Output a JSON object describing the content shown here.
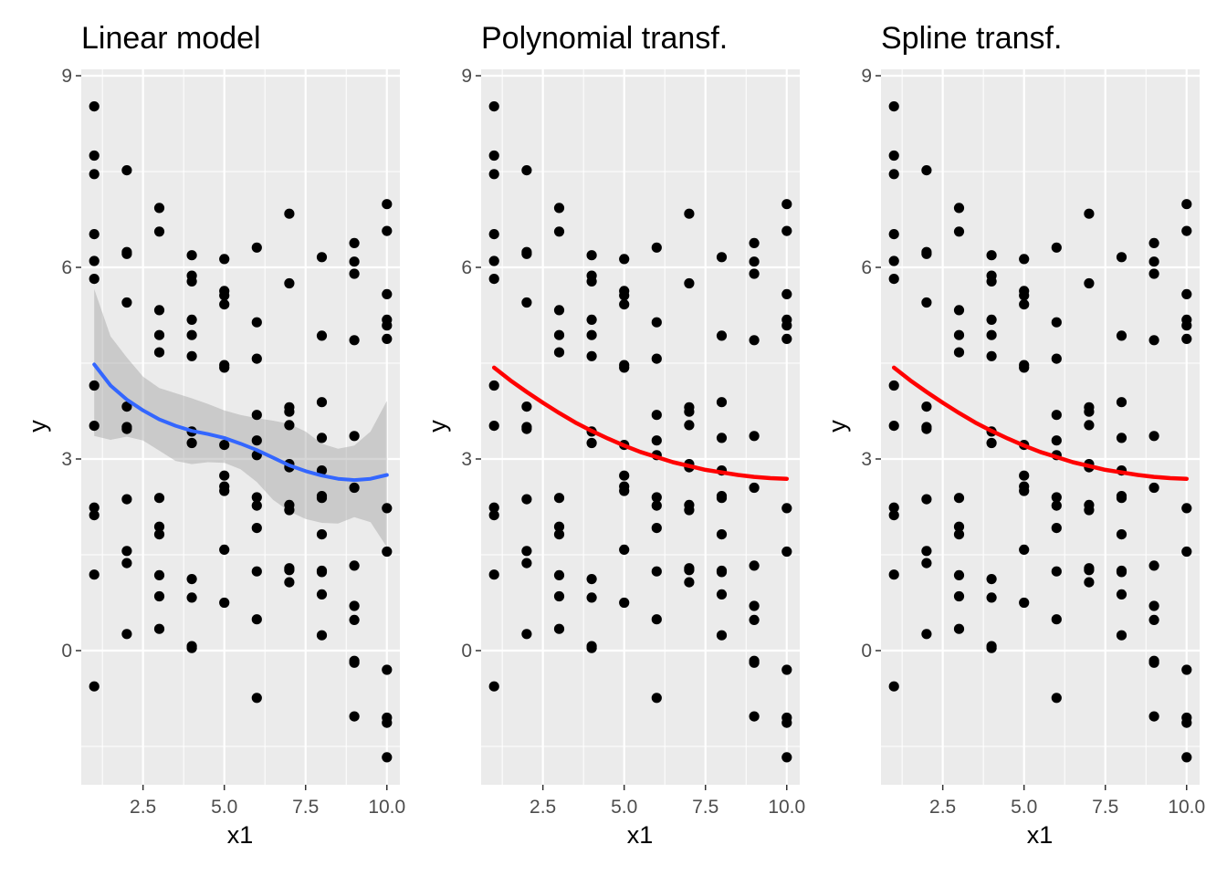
{
  "colors": {
    "panel_bg": "#ebebeb",
    "grid": "#ffffff",
    "points": "#000000",
    "smooth_line": "#3366ff",
    "ribbon": "#999999",
    "fit_line": "#ff0000",
    "tick_text": "#4d4d4d"
  },
  "chart_data": [
    {
      "type": "scatter",
      "title": "Linear model",
      "xlabel": "x1",
      "ylabel": "y",
      "xlim": [
        0.6,
        10.4
      ],
      "ylim": [
        -2.1,
        9.1
      ],
      "x_ticks": [
        2.5,
        5.0,
        7.5,
        10.0
      ],
      "x_tick_labels": [
        "2.5",
        "5.0",
        "7.5",
        "10.0"
      ],
      "y_ticks": [
        0,
        3,
        6,
        9
      ],
      "y_tick_labels": [
        "0",
        "3",
        "6",
        "9"
      ],
      "grid": true,
      "points": [
        [
          1,
          8.52
        ],
        [
          1,
          7.75
        ],
        [
          1,
          7.46
        ],
        [
          1,
          6.52
        ],
        [
          1,
          6.1
        ],
        [
          1,
          5.82
        ],
        [
          1,
          4.15
        ],
        [
          1,
          3.52
        ],
        [
          1,
          2.24
        ],
        [
          1,
          2.12
        ],
        [
          1,
          1.19
        ],
        [
          1,
          -0.56
        ],
        [
          2,
          7.52
        ],
        [
          2,
          6.24
        ],
        [
          2,
          6.21
        ],
        [
          2,
          5.45
        ],
        [
          2,
          3.82
        ],
        [
          2,
          3.5
        ],
        [
          2,
          3.47
        ],
        [
          2,
          2.37
        ],
        [
          2,
          1.56
        ],
        [
          2,
          1.37
        ],
        [
          2,
          0.26
        ],
        [
          3,
          6.93
        ],
        [
          3,
          6.56
        ],
        [
          3,
          5.33
        ],
        [
          3,
          4.94
        ],
        [
          3,
          4.67
        ],
        [
          3,
          2.39
        ],
        [
          3,
          1.94
        ],
        [
          3,
          1.82
        ],
        [
          3,
          1.18
        ],
        [
          3,
          0.85
        ],
        [
          3,
          0.34
        ],
        [
          4,
          6.19
        ],
        [
          4,
          5.87
        ],
        [
          4,
          5.78
        ],
        [
          4,
          5.18
        ],
        [
          4,
          4.94
        ],
        [
          4,
          4.61
        ],
        [
          4,
          3.43
        ],
        [
          4,
          3.25
        ],
        [
          4,
          1.12
        ],
        [
          4,
          0.83
        ],
        [
          4,
          0.07
        ],
        [
          4,
          0.04
        ],
        [
          5,
          6.13
        ],
        [
          5,
          5.63
        ],
        [
          5,
          5.56
        ],
        [
          5,
          5.42
        ],
        [
          5,
          4.47
        ],
        [
          5,
          4.43
        ],
        [
          5,
          3.22
        ],
        [
          5,
          2.74
        ],
        [
          5,
          2.57
        ],
        [
          5,
          2.5
        ],
        [
          5,
          1.58
        ],
        [
          5,
          0.75
        ],
        [
          6,
          6.31
        ],
        [
          6,
          5.14
        ],
        [
          6,
          4.57
        ],
        [
          6,
          3.69
        ],
        [
          6,
          3.29
        ],
        [
          6,
          3.06
        ],
        [
          6,
          2.4
        ],
        [
          6,
          2.27
        ],
        [
          6,
          1.92
        ],
        [
          6,
          1.24
        ],
        [
          6,
          0.49
        ],
        [
          6,
          -0.74
        ],
        [
          7,
          6.84
        ],
        [
          7,
          5.75
        ],
        [
          7,
          3.81
        ],
        [
          7,
          3.74
        ],
        [
          7,
          3.53
        ],
        [
          7,
          2.92
        ],
        [
          7,
          2.87
        ],
        [
          7,
          2.28
        ],
        [
          7,
          2.2
        ],
        [
          7,
          1.29
        ],
        [
          7,
          1.26
        ],
        [
          7,
          1.07
        ],
        [
          8,
          6.16
        ],
        [
          8,
          4.93
        ],
        [
          8,
          3.89
        ],
        [
          8,
          3.33
        ],
        [
          8,
          2.82
        ],
        [
          8,
          2.42
        ],
        [
          8,
          2.39
        ],
        [
          8,
          1.82
        ],
        [
          8,
          1.25
        ],
        [
          8,
          1.23
        ],
        [
          8,
          0.88
        ],
        [
          8,
          0.24
        ],
        [
          9,
          6.38
        ],
        [
          9,
          6.09
        ],
        [
          9,
          5.9
        ],
        [
          9,
          4.86
        ],
        [
          9,
          3.36
        ],
        [
          9,
          2.55
        ],
        [
          9,
          1.33
        ],
        [
          9,
          0.7
        ],
        [
          9,
          0.48
        ],
        [
          9,
          -0.16
        ],
        [
          9,
          -0.19
        ],
        [
          9,
          -1.03
        ],
        [
          10,
          6.99
        ],
        [
          10,
          6.57
        ],
        [
          10,
          5.58
        ],
        [
          10,
          5.18
        ],
        [
          10,
          5.09
        ],
        [
          10,
          4.88
        ],
        [
          10,
          2.23
        ],
        [
          10,
          1.55
        ],
        [
          10,
          -0.3
        ],
        [
          10,
          -1.05
        ],
        [
          10,
          -1.13
        ],
        [
          10,
          -1.67
        ]
      ],
      "smooth_line": {
        "x": [
          1.0,
          1.5,
          2.0,
          2.5,
          3.0,
          3.5,
          4.0,
          4.5,
          5.0,
          5.5,
          6.0,
          6.5,
          7.0,
          7.5,
          8.0,
          8.5,
          9.0,
          9.5,
          10.0
        ],
        "y": [
          4.48,
          4.15,
          3.93,
          3.76,
          3.62,
          3.52,
          3.44,
          3.39,
          3.33,
          3.24,
          3.14,
          3.02,
          2.9,
          2.81,
          2.74,
          2.69,
          2.67,
          2.69,
          2.75
        ],
        "lower": [
          3.36,
          3.3,
          3.35,
          3.29,
          3.13,
          2.97,
          2.92,
          2.95,
          2.94,
          2.84,
          2.64,
          2.36,
          2.18,
          2.06,
          2.0,
          1.99,
          2.09,
          2.01,
          1.62
        ],
        "upper": [
          5.66,
          4.92,
          4.59,
          4.29,
          4.11,
          4.03,
          3.95,
          3.86,
          3.76,
          3.69,
          3.64,
          3.6,
          3.55,
          3.43,
          3.24,
          3.16,
          3.21,
          3.43,
          3.91
        ]
      }
    },
    {
      "type": "scatter",
      "title": "Polynomial transf.",
      "xlabel": "x1",
      "ylabel": "y",
      "fit_line": {
        "x": [
          1.0,
          1.5,
          2.0,
          2.5,
          3.0,
          3.5,
          4.0,
          4.5,
          5.0,
          5.5,
          6.0,
          6.5,
          7.0,
          7.5,
          8.0,
          8.5,
          9.0,
          9.5,
          10.0
        ],
        "y": [
          4.43,
          4.23,
          4.05,
          3.88,
          3.72,
          3.57,
          3.44,
          3.32,
          3.21,
          3.11,
          3.03,
          2.95,
          2.89,
          2.83,
          2.79,
          2.75,
          2.72,
          2.7,
          2.69
        ]
      }
    },
    {
      "type": "scatter",
      "title": "Spline transf.",
      "xlabel": "x1",
      "ylabel": "y",
      "fit_line": {
        "x": [
          1.0,
          1.5,
          2.0,
          2.5,
          3.0,
          3.5,
          4.0,
          4.5,
          5.0,
          5.5,
          6.0,
          6.5,
          7.0,
          7.5,
          8.0,
          8.5,
          9.0,
          9.5,
          10.0
        ],
        "y": [
          4.43,
          4.23,
          4.05,
          3.88,
          3.72,
          3.57,
          3.44,
          3.32,
          3.21,
          3.11,
          3.03,
          2.95,
          2.89,
          2.83,
          2.79,
          2.75,
          2.72,
          2.7,
          2.69
        ]
      }
    }
  ]
}
